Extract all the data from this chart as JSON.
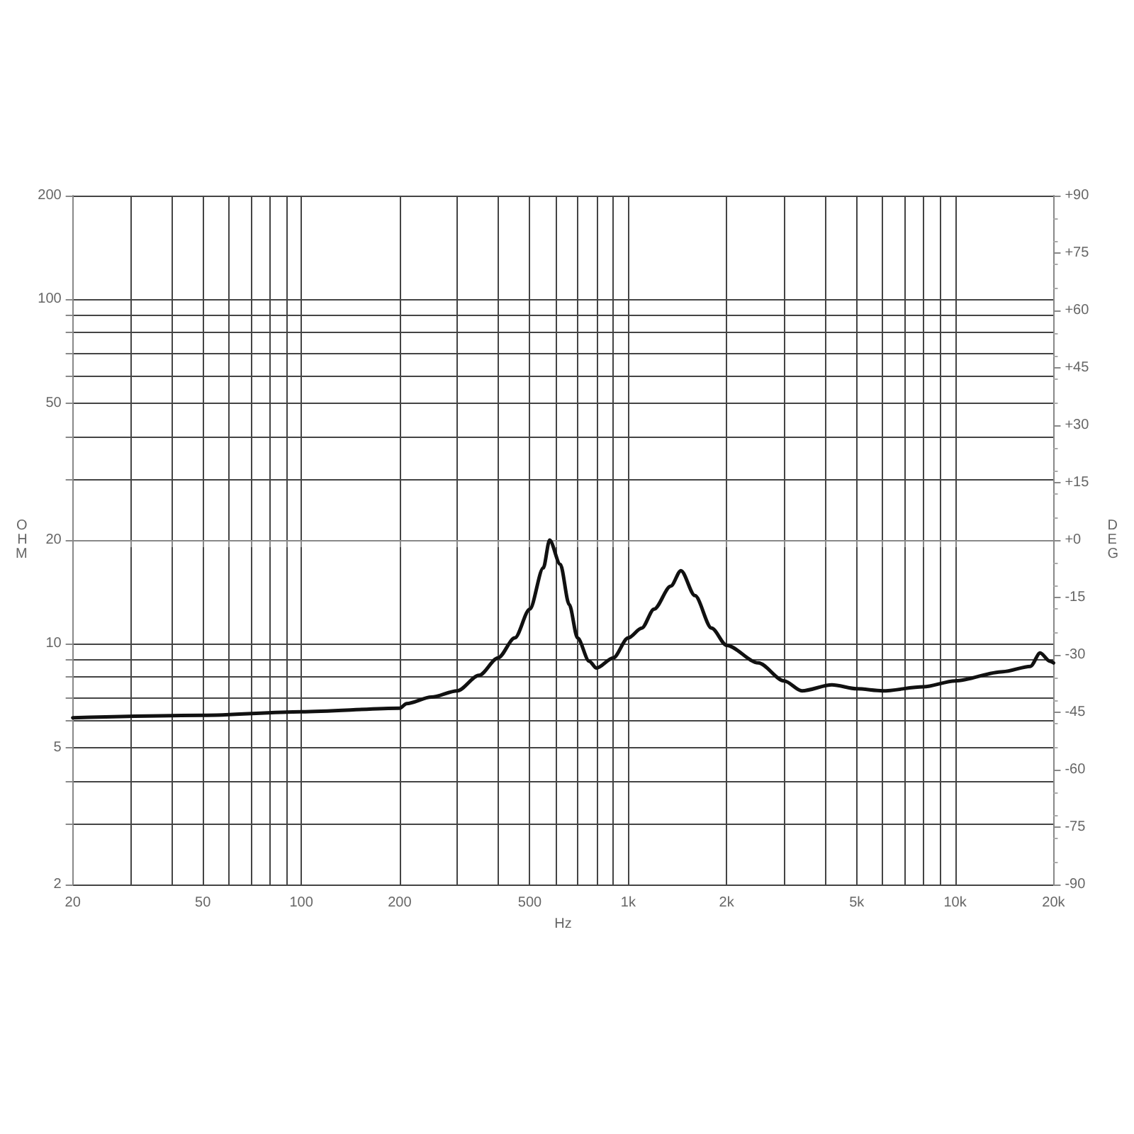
{
  "chart_data": {
    "type": "line",
    "xlabel": "Hz",
    "ylabel": "OHM",
    "y2label": "DEG",
    "log": "xy",
    "grid": true,
    "marker": "none",
    "line_style": "solid",
    "xlim": [
      20,
      20000
    ],
    "ylim": [
      2,
      200
    ],
    "y2lim": [
      -90,
      90
    ],
    "xticks": [
      20,
      {
        "value": 30,
        "label": null
      },
      {
        "value": 40,
        "label": null
      },
      50,
      {
        "value": 60,
        "label": null
      },
      {
        "value": 70,
        "label": null
      },
      {
        "value": 80,
        "label": null
      },
      {
        "value": 90,
        "label": null
      },
      100,
      200,
      {
        "value": 300,
        "label": null
      },
      {
        "value": 400,
        "label": null
      },
      500,
      {
        "value": 600,
        "label": null
      },
      {
        "value": 700,
        "label": null
      },
      {
        "value": 800,
        "label": null
      },
      {
        "value": 900,
        "label": null
      },
      {
        "value": 1000,
        "label": "1k"
      },
      {
        "value": 2000,
        "label": "2k"
      },
      {
        "value": 3000,
        "label": null
      },
      {
        "value": 4000,
        "label": null
      },
      {
        "value": 5000,
        "label": "5k"
      },
      {
        "value": 6000,
        "label": null
      },
      {
        "value": 7000,
        "label": null
      },
      {
        "value": 8000,
        "label": null
      },
      {
        "value": 9000,
        "label": null
      },
      {
        "value": 10000,
        "label": "10k"
      },
      {
        "value": 20000,
        "label": "20k"
      }
    ],
    "yticks": [
      2,
      {
        "value": 3,
        "label": null
      },
      {
        "value": 4,
        "label": null
      },
      5,
      {
        "value": 6,
        "label": null
      },
      {
        "value": 7,
        "label": null
      },
      {
        "value": 8,
        "label": null
      },
      {
        "value": 9,
        "label": null
      },
      10,
      20,
      {
        "value": 30,
        "label": null
      },
      {
        "value": 40,
        "label": null
      },
      50,
      {
        "value": 60,
        "label": null
      },
      {
        "value": 70,
        "label": null
      },
      {
        "value": 80,
        "label": null
      },
      {
        "value": 90,
        "label": null
      },
      100,
      200
    ],
    "y2ticks": [
      {
        "value": 90,
        "label": "+90"
      },
      {
        "value": 75,
        "label": "+75"
      },
      {
        "value": 60,
        "label": "+60"
      },
      {
        "value": 45,
        "label": "+45"
      },
      {
        "value": 30,
        "label": "+30"
      },
      {
        "value": 15,
        "label": "+15"
      },
      {
        "value": 0,
        "label": "+0"
      },
      -15,
      -30,
      -45,
      -60,
      -75,
      -90
    ],
    "series": [
      {
        "color": "#111111",
        "x": [
          20,
          50,
          100,
          200,
          210,
          250,
          300,
          350,
          400,
          450,
          500,
          550,
          575,
          620,
          660,
          700,
          760,
          800,
          900,
          1000,
          1100,
          1200,
          1350,
          1450,
          1600,
          1800,
          2000,
          2500,
          3000,
          3400,
          4200,
          5000,
          6000,
          8000,
          10000,
          14000,
          17000,
          18200,
          19500,
          20000
        ],
        "values": [
          6.1,
          6.2,
          6.35,
          6.5,
          6.7,
          7.0,
          7.3,
          8.1,
          9.1,
          10.4,
          12.6,
          16.6,
          20,
          17,
          13,
          10.4,
          8.9,
          8.5,
          9.1,
          10.4,
          11.1,
          12.6,
          14.7,
          16.3,
          13.8,
          11.1,
          9.9,
          8.8,
          7.8,
          7.3,
          7.6,
          7.4,
          7.3,
          7.5,
          7.8,
          8.3,
          8.6,
          9.4,
          8.9,
          8.8
        ]
      }
    ]
  }
}
